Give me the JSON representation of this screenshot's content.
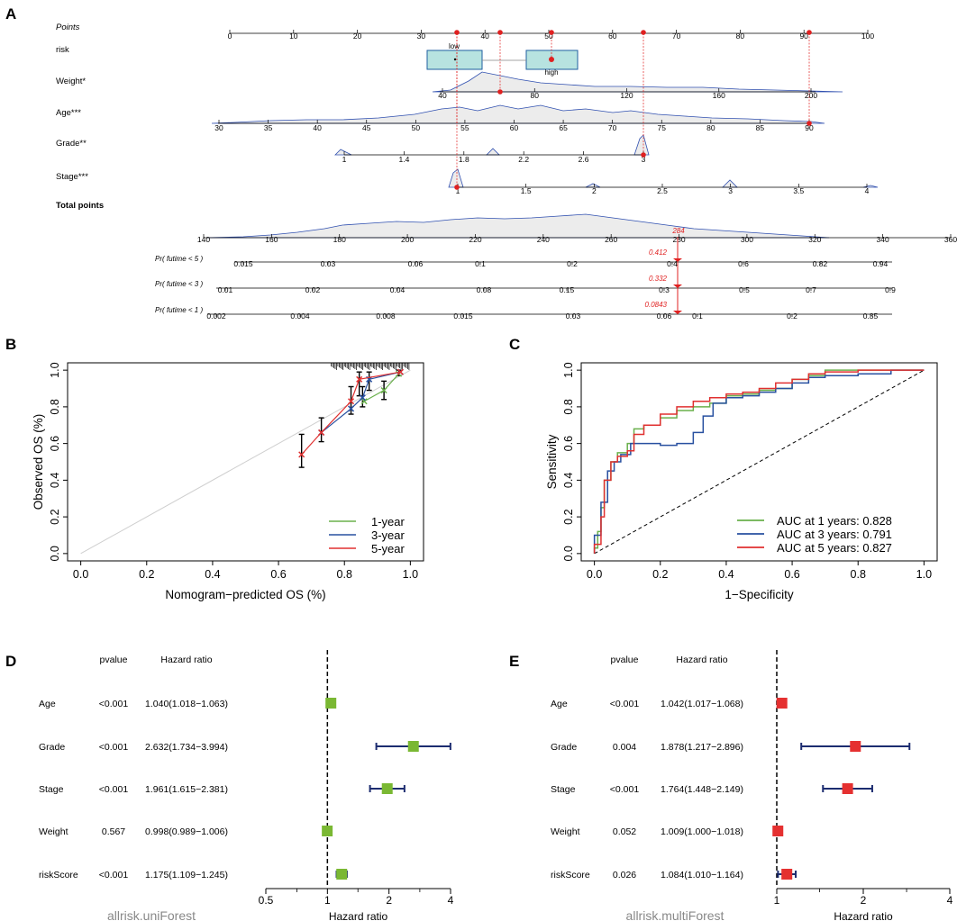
{
  "panel_labels": [
    "A",
    "B",
    "C",
    "D",
    "E"
  ],
  "chart_data": [
    {
      "panel": "A",
      "type": "nomogram",
      "rows": [
        {
          "label": "Points",
          "ticks": [
            "0",
            "10",
            "20",
            "30",
            "40",
            "50",
            "60",
            "70",
            "80",
            "90",
            "100"
          ]
        },
        {
          "label": "risk",
          "categories": [
            "low",
            "high"
          ]
        },
        {
          "label": "Weight*",
          "ticks": [
            "40",
            "80",
            "120",
            "160",
            "200"
          ]
        },
        {
          "label": "Age***",
          "ticks": [
            "30",
            "35",
            "40",
            "45",
            "50",
            "55",
            "60",
            "65",
            "70",
            "75",
            "80",
            "85",
            "90"
          ]
        },
        {
          "label": "Grade**",
          "ticks": [
            "1",
            "1.4",
            "1.8",
            "2.2",
            "2.6",
            "3"
          ]
        },
        {
          "label": "Stage***",
          "ticks": [
            "1",
            "1.5",
            "2",
            "2.5",
            "3",
            "3.5",
            "4"
          ]
        },
        {
          "label": "Total points",
          "ticks": [
            "140",
            "160",
            "180",
            "200",
            "220",
            "240",
            "260",
            "280",
            "300",
            "320",
            "340",
            "360"
          ]
        },
        {
          "label": "Pr( futime < 5 )",
          "ticks": [
            "0.015",
            "0.03",
            "0.06",
            "0.1",
            "0.2",
            "0.4",
            "0.6",
            "0.82",
            "0.94"
          ],
          "predicted": "0.412"
        },
        {
          "label": "Pr( futime < 3 )",
          "ticks": [
            "0.01",
            "0.02",
            "0.04",
            "0.08",
            "0.15",
            "0.3",
            "0.5",
            "0.7",
            "0.9"
          ],
          "predicted": "0.332"
        },
        {
          "label": "Pr( futime < 1 )",
          "ticks": [
            "0.002",
            "0.004",
            "0.008",
            "0.015",
            "0.03",
            "0.06",
            "0.1",
            "0.2",
            "0.35"
          ],
          "predicted": "0.0843"
        }
      ],
      "total_score": "284"
    },
    {
      "panel": "B",
      "type": "line",
      "title": "",
      "xlabel": "Nomogram−predicted OS (%)",
      "ylabel": "Observed OS (%)",
      "xlim": [
        0,
        1
      ],
      "ylim": [
        0,
        1
      ],
      "xticks": [
        "0.0",
        "0.2",
        "0.4",
        "0.6",
        "0.8",
        "1.0"
      ],
      "yticks": [
        "0.0",
        "0.2",
        "0.4",
        "0.6",
        "0.8",
        "1.0"
      ],
      "legend": "bottom-right",
      "series": [
        {
          "name": "1-year",
          "color": "#6ab04c",
          "points": [
            [
              0.86,
              0.83
            ],
            [
              0.92,
              0.89
            ],
            [
              0.965,
              0.98
            ]
          ]
        },
        {
          "name": "3-year",
          "color": "#2850a0",
          "points": [
            [
              0.73,
              0.66
            ],
            [
              0.82,
              0.79
            ],
            [
              0.855,
              0.85
            ],
            [
              0.875,
              0.95
            ],
            [
              0.97,
              0.99
            ]
          ]
        },
        {
          "name": "5-year",
          "color": "#e03030",
          "points": [
            [
              0.67,
              0.54
            ],
            [
              0.73,
              0.66
            ],
            [
              0.82,
              0.83
            ],
            [
              0.845,
              0.95
            ],
            [
              0.97,
              0.99
            ]
          ]
        }
      ]
    },
    {
      "panel": "C",
      "type": "line",
      "title": "",
      "xlabel": "1−Specificity",
      "ylabel": "Sensitivity",
      "xlim": [
        0,
        1
      ],
      "ylim": [
        0,
        1
      ],
      "xticks": [
        "0.0",
        "0.2",
        "0.4",
        "0.6",
        "0.8",
        "1.0"
      ],
      "yticks": [
        "0.0",
        "0.2",
        "0.4",
        "0.6",
        "0.8",
        "1.0"
      ],
      "legend": "bottom-right",
      "series": [
        {
          "name": "AUC at 1 years: 0.828",
          "color": "#6ab04c",
          "points": [
            [
              0,
              0
            ],
            [
              0.01,
              0.03
            ],
            [
              0.02,
              0.12
            ],
            [
              0.03,
              0.25
            ],
            [
              0.05,
              0.4
            ],
            [
              0.07,
              0.5
            ],
            [
              0.1,
              0.55
            ],
            [
              0.12,
              0.6
            ],
            [
              0.15,
              0.68
            ],
            [
              0.2,
              0.7
            ],
            [
              0.25,
              0.74
            ],
            [
              0.3,
              0.78
            ],
            [
              0.35,
              0.8
            ],
            [
              0.4,
              0.82
            ],
            [
              0.45,
              0.86
            ],
            [
              0.5,
              0.87
            ],
            [
              0.55,
              0.89
            ],
            [
              0.6,
              0.9
            ],
            [
              0.65,
              0.95
            ],
            [
              0.7,
              0.97
            ],
            [
              0.75,
              1.0
            ],
            [
              1.0,
              1.0
            ]
          ]
        },
        {
          "name": "AUC at 3 years: 0.791",
          "color": "#2850a0",
          "points": [
            [
              0,
              0
            ],
            [
              0.02,
              0.1
            ],
            [
              0.04,
              0.28
            ],
            [
              0.06,
              0.45
            ],
            [
              0.08,
              0.5
            ],
            [
              0.11,
              0.54
            ],
            [
              0.15,
              0.6
            ],
            [
              0.2,
              0.6
            ],
            [
              0.25,
              0.59
            ],
            [
              0.3,
              0.6
            ],
            [
              0.33,
              0.66
            ],
            [
              0.36,
              0.75
            ],
            [
              0.4,
              0.82
            ],
            [
              0.45,
              0.85
            ],
            [
              0.5,
              0.86
            ],
            [
              0.55,
              0.88
            ],
            [
              0.6,
              0.9
            ],
            [
              0.65,
              0.93
            ],
            [
              0.7,
              0.96
            ],
            [
              0.8,
              0.97
            ],
            [
              0.9,
              0.98
            ],
            [
              1.0,
              1.0
            ]
          ]
        },
        {
          "name": "AUC at 5 years: 0.827",
          "color": "#e03030",
          "points": [
            [
              0,
              0
            ],
            [
              0.02,
              0.05
            ],
            [
              0.03,
              0.2
            ],
            [
              0.05,
              0.4
            ],
            [
              0.07,
              0.5
            ],
            [
              0.1,
              0.53
            ],
            [
              0.12,
              0.56
            ],
            [
              0.15,
              0.65
            ],
            [
              0.2,
              0.7
            ],
            [
              0.25,
              0.76
            ],
            [
              0.3,
              0.8
            ],
            [
              0.35,
              0.83
            ],
            [
              0.4,
              0.85
            ],
            [
              0.45,
              0.87
            ],
            [
              0.5,
              0.88
            ],
            [
              0.55,
              0.9
            ],
            [
              0.6,
              0.93
            ],
            [
              0.65,
              0.95
            ],
            [
              0.7,
              0.98
            ],
            [
              0.8,
              0.99
            ],
            [
              0.9,
              1.0
            ],
            [
              1.0,
              1.0
            ]
          ]
        }
      ]
    },
    {
      "panel": "D",
      "type": "forest",
      "caption": "allrisk.uniForest",
      "xlabel": "Hazard ratio",
      "xticks": [
        "0.5",
        "1",
        "2",
        "4"
      ],
      "col_headers": {
        "pvalue": "pvalue",
        "hr": "Hazard ratio"
      },
      "color": "#7ab833",
      "rows": [
        {
          "name": "Age",
          "pvalue": "<0.001",
          "hr_text": "1.040(1.018−1.063)",
          "hr": 1.04,
          "lo": 1.018,
          "hi": 1.063
        },
        {
          "name": "Grade",
          "pvalue": "<0.001",
          "hr_text": "2.632(1.734−3.994)",
          "hr": 2.632,
          "lo": 1.734,
          "hi": 3.994
        },
        {
          "name": "Stage",
          "pvalue": "<0.001",
          "hr_text": "1.961(1.615−2.381)",
          "hr": 1.961,
          "lo": 1.615,
          "hi": 2.381
        },
        {
          "name": "Weight",
          "pvalue": "0.567",
          "hr_text": "0.998(0.989−1.006)",
          "hr": 0.998,
          "lo": 0.989,
          "hi": 1.006
        },
        {
          "name": "riskScore",
          "pvalue": "<0.001",
          "hr_text": "1.175(1.109−1.245)",
          "hr": 1.175,
          "lo": 1.109,
          "hi": 1.245
        }
      ]
    },
    {
      "panel": "E",
      "type": "forest",
      "caption": "allrisk.multiForest",
      "xlabel": "Hazard ratio",
      "xticks": [
        "1",
        "2",
        "4"
      ],
      "col_headers": {
        "pvalue": "pvalue",
        "hr": "Hazard ratio"
      },
      "color": "#e53030",
      "rows": [
        {
          "name": "Age",
          "pvalue": "<0.001",
          "hr_text": "1.042(1.017−1.068)",
          "hr": 1.042,
          "lo": 1.017,
          "hi": 1.068
        },
        {
          "name": "Grade",
          "pvalue": "0.004",
          "hr_text": "1.878(1.217−2.896)",
          "hr": 1.878,
          "lo": 1.217,
          "hi": 2.896
        },
        {
          "name": "Stage",
          "pvalue": "<0.001",
          "hr_text": "1.764(1.448−2.149)",
          "hr": 1.764,
          "lo": 1.448,
          "hi": 2.149
        },
        {
          "name": "Weight",
          "pvalue": "0.052",
          "hr_text": "1.009(1.000−1.018)",
          "hr": 1.009,
          "lo": 1.0,
          "hi": 1.018
        },
        {
          "name": "riskScore",
          "pvalue": "0.026",
          "hr_text": "1.084(1.010−1.164)",
          "hr": 1.084,
          "lo": 1.01,
          "hi": 1.164
        }
      ]
    }
  ]
}
